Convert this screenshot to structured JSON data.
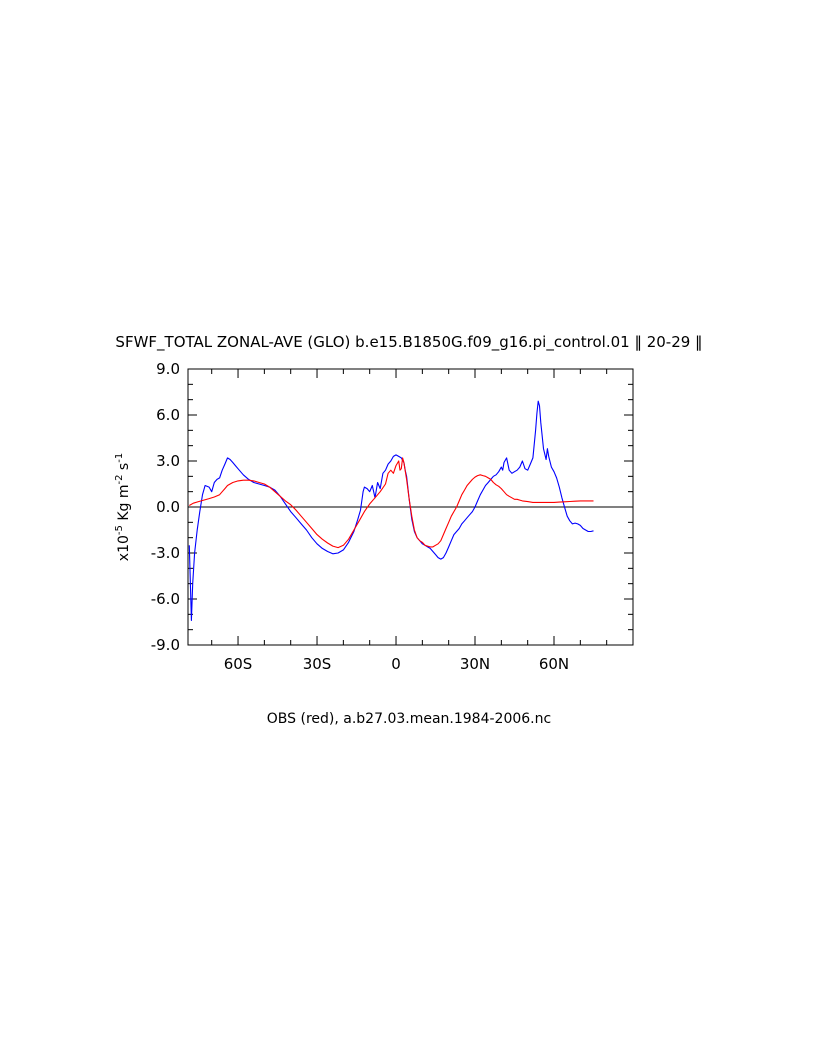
{
  "chart_data": {
    "type": "line",
    "title": "SFWF_TOTAL ZONAL-AVE (GLO) b.e15.B1850G.f09_g16.pi_control.01 ‖ 20-29 ‖",
    "xlabel": "OBS (red), a.b27.03.mean.1984-2006.nc",
    "ylabel": {
      "base": "x10",
      "exp1": "-5",
      "mid1": " Kg m",
      "exp2": "-2",
      "mid2": " s",
      "exp3": "-1"
    },
    "xlim": [
      -79,
      90
    ],
    "ylim": [
      -9,
      9
    ],
    "x_ticks": [
      {
        "value": -60,
        "label": "60S"
      },
      {
        "value": -30,
        "label": "30S"
      },
      {
        "value": 0,
        "label": "0"
      },
      {
        "value": 30,
        "label": "30N"
      },
      {
        "value": 60,
        "label": "60N"
      }
    ],
    "y_ticks": [
      {
        "value": 9,
        "label": "9.0"
      },
      {
        "value": 6,
        "label": "6.0"
      },
      {
        "value": 3,
        "label": "3.0"
      },
      {
        "value": 0,
        "label": "0.0"
      },
      {
        "value": -3,
        "label": "-3.0"
      },
      {
        "value": -6,
        "label": "-6.0"
      },
      {
        "value": -9,
        "label": "-9.0"
      }
    ],
    "zero_line": 0,
    "series": [
      {
        "color": "#0000ff",
        "points": [
          [
            -78.5,
            -2.5
          ],
          [
            -78,
            -5.5
          ],
          [
            -77.7,
            -7.4
          ],
          [
            -77.2,
            -5
          ],
          [
            -76.5,
            -3
          ],
          [
            -75.5,
            -1.5
          ],
          [
            -74.5,
            -0.3
          ],
          [
            -73.5,
            0.8
          ],
          [
            -72.5,
            1.4
          ],
          [
            -71,
            1.3
          ],
          [
            -70,
            1
          ],
          [
            -69,
            1.6
          ],
          [
            -68,
            1.8
          ],
          [
            -67,
            1.9
          ],
          [
            -66,
            2.4
          ],
          [
            -65,
            2.8
          ],
          [
            -64,
            3.2
          ],
          [
            -63,
            3.1
          ],
          [
            -62,
            2.9
          ],
          [
            -61,
            2.7
          ],
          [
            -60,
            2.5
          ],
          [
            -58,
            2.1
          ],
          [
            -56,
            1.8
          ],
          [
            -54,
            1.6
          ],
          [
            -52,
            1.5
          ],
          [
            -50,
            1.4
          ],
          [
            -48,
            1.3
          ],
          [
            -46,
            1.1
          ],
          [
            -44,
            0.7
          ],
          [
            -42,
            0.2
          ],
          [
            -40,
            -0.3
          ],
          [
            -38,
            -0.7
          ],
          [
            -36,
            -1.1
          ],
          [
            -34,
            -1.5
          ],
          [
            -32,
            -2
          ],
          [
            -30,
            -2.4
          ],
          [
            -28,
            -2.7
          ],
          [
            -26,
            -2.9
          ],
          [
            -24,
            -3.05
          ],
          [
            -22,
            -3
          ],
          [
            -20,
            -2.8
          ],
          [
            -18,
            -2.3
          ],
          [
            -16,
            -1.6
          ],
          [
            -14.5,
            -0.8
          ],
          [
            -13.5,
            -0.2
          ],
          [
            -13,
            0.4
          ],
          [
            -12.5,
            1
          ],
          [
            -12,
            1.3
          ],
          [
            -11,
            1.2
          ],
          [
            -10,
            1
          ],
          [
            -9,
            1.4
          ],
          [
            -8,
            0.6
          ],
          [
            -7,
            1.6
          ],
          [
            -6,
            1.2
          ],
          [
            -5,
            2.2
          ],
          [
            -4,
            2.4
          ],
          [
            -3,
            2.8
          ],
          [
            -2,
            3
          ],
          [
            -1,
            3.3
          ],
          [
            0,
            3.4
          ],
          [
            1,
            3.3
          ],
          [
            2,
            3.2
          ],
          [
            3,
            2.9
          ],
          [
            3.5,
            2.4
          ],
          [
            4,
            2
          ],
          [
            5,
            0.5
          ],
          [
            6,
            -0.8
          ],
          [
            7,
            -1.6
          ],
          [
            8,
            -2
          ],
          [
            9,
            -2.2
          ],
          [
            10,
            -2.4
          ],
          [
            11,
            -2.5
          ],
          [
            12,
            -2.6
          ],
          [
            13,
            -2.7
          ],
          [
            14,
            -2.9
          ],
          [
            15,
            -3.1
          ],
          [
            16,
            -3.3
          ],
          [
            17,
            -3.4
          ],
          [
            18,
            -3.3
          ],
          [
            19,
            -3
          ],
          [
            20,
            -2.6
          ],
          [
            21,
            -2.2
          ],
          [
            22,
            -1.8
          ],
          [
            23,
            -1.6
          ],
          [
            24,
            -1.4
          ],
          [
            25,
            -1.1
          ],
          [
            26,
            -0.9
          ],
          [
            27,
            -0.7
          ],
          [
            28,
            -0.5
          ],
          [
            29,
            -0.3
          ],
          [
            30,
            0
          ],
          [
            31,
            0.4
          ],
          [
            32,
            0.8
          ],
          [
            33,
            1.1
          ],
          [
            34,
            1.4
          ],
          [
            35,
            1.6
          ],
          [
            36,
            1.8
          ],
          [
            37,
            2
          ],
          [
            38,
            2.1
          ],
          [
            39,
            2.3
          ],
          [
            40,
            2.6
          ],
          [
            40.5,
            2.4
          ],
          [
            41,
            2.9
          ],
          [
            42,
            3.2
          ],
          [
            43,
            2.4
          ],
          [
            44,
            2.2
          ],
          [
            45,
            2.3
          ],
          [
            46,
            2.4
          ],
          [
            47,
            2.6
          ],
          [
            48,
            3
          ],
          [
            49,
            2.5
          ],
          [
            50,
            2.4
          ],
          [
            51,
            2.8
          ],
          [
            52,
            3.2
          ],
          [
            53,
            5
          ],
          [
            53.5,
            6.1
          ],
          [
            54,
            6.9
          ],
          [
            54.5,
            6.6
          ],
          [
            55,
            5.5
          ],
          [
            56,
            3.8
          ],
          [
            57,
            3.1
          ],
          [
            57.5,
            3.8
          ],
          [
            58,
            3.3
          ],
          [
            59,
            2.6
          ],
          [
            60,
            2.3
          ],
          [
            61,
            1.9
          ],
          [
            62,
            1.3
          ],
          [
            63,
            0.6
          ],
          [
            64,
            0
          ],
          [
            65,
            -0.6
          ],
          [
            66,
            -0.9
          ],
          [
            67,
            -1.1
          ],
          [
            68,
            -1.05
          ],
          [
            69,
            -1.1
          ],
          [
            70,
            -1.2
          ],
          [
            71,
            -1.4
          ],
          [
            72,
            -1.5
          ],
          [
            73,
            -1.6
          ],
          [
            74,
            -1.6
          ],
          [
            75,
            -1.55
          ]
        ]
      },
      {
        "color": "#ff0000",
        "points": [
          [
            -78.5,
            0.1
          ],
          [
            -77,
            0.25
          ],
          [
            -75,
            0.35
          ],
          [
            -73,
            0.45
          ],
          [
            -71,
            0.55
          ],
          [
            -69,
            0.65
          ],
          [
            -67,
            0.8
          ],
          [
            -66,
            1
          ],
          [
            -65,
            1.2
          ],
          [
            -64,
            1.4
          ],
          [
            -63,
            1.5
          ],
          [
            -62,
            1.6
          ],
          [
            -60,
            1.7
          ],
          [
            -58,
            1.75
          ],
          [
            -56,
            1.75
          ],
          [
            -54,
            1.7
          ],
          [
            -52,
            1.6
          ],
          [
            -50,
            1.5
          ],
          [
            -48,
            1.3
          ],
          [
            -46,
            1
          ],
          [
            -44,
            0.7
          ],
          [
            -42,
            0.4
          ],
          [
            -40,
            0.15
          ],
          [
            -38,
            -0.2
          ],
          [
            -36,
            -0.6
          ],
          [
            -34,
            -1
          ],
          [
            -32,
            -1.4
          ],
          [
            -30,
            -1.8
          ],
          [
            -28,
            -2.1
          ],
          [
            -26,
            -2.35
          ],
          [
            -24,
            -2.55
          ],
          [
            -22,
            -2.65
          ],
          [
            -20,
            -2.5
          ],
          [
            -18,
            -2.1
          ],
          [
            -16,
            -1.5
          ],
          [
            -14,
            -0.9
          ],
          [
            -12,
            -0.3
          ],
          [
            -10,
            0.2
          ],
          [
            -8,
            0.6
          ],
          [
            -6,
            1
          ],
          [
            -4,
            1.5
          ],
          [
            -3,
            2.2
          ],
          [
            -2,
            2.4
          ],
          [
            -1,
            2.2
          ],
          [
            0,
            2.7
          ],
          [
            1,
            3
          ],
          [
            1.5,
            2.4
          ],
          [
            2,
            2.5
          ],
          [
            2.5,
            3.2
          ],
          [
            3,
            2.9
          ],
          [
            4,
            1.8
          ],
          [
            5,
            0.5
          ],
          [
            6,
            -0.6
          ],
          [
            7,
            -1.5
          ],
          [
            8,
            -2
          ],
          [
            9,
            -2.2
          ],
          [
            10,
            -2.3
          ],
          [
            11,
            -2.5
          ],
          [
            12,
            -2.55
          ],
          [
            13,
            -2.6
          ],
          [
            14,
            -2.6
          ],
          [
            15,
            -2.5
          ],
          [
            16,
            -2.4
          ],
          [
            17,
            -2.2
          ],
          [
            18,
            -1.8
          ],
          [
            19,
            -1.4
          ],
          [
            20,
            -1
          ],
          [
            21,
            -0.6
          ],
          [
            22,
            -0.3
          ],
          [
            23,
            0
          ],
          [
            24,
            0.4
          ],
          [
            25,
            0.8
          ],
          [
            26,
            1.1
          ],
          [
            27,
            1.4
          ],
          [
            28,
            1.6
          ],
          [
            29,
            1.8
          ],
          [
            30,
            1.95
          ],
          [
            31,
            2.05
          ],
          [
            32,
            2.1
          ],
          [
            33,
            2.05
          ],
          [
            34,
            2
          ],
          [
            35,
            1.9
          ],
          [
            36,
            1.8
          ],
          [
            37,
            1.6
          ],
          [
            38,
            1.45
          ],
          [
            39,
            1.35
          ],
          [
            40,
            1.2
          ],
          [
            41,
            1
          ],
          [
            42,
            0.8
          ],
          [
            43,
            0.7
          ],
          [
            44,
            0.6
          ],
          [
            45,
            0.5
          ],
          [
            46,
            0.5
          ],
          [
            47,
            0.45
          ],
          [
            48,
            0.4
          ],
          [
            50,
            0.35
          ],
          [
            52,
            0.3
          ],
          [
            54,
            0.3
          ],
          [
            56,
            0.3
          ],
          [
            58,
            0.3
          ],
          [
            60,
            0.3
          ],
          [
            62,
            0.32
          ],
          [
            64,
            0.34
          ],
          [
            66,
            0.36
          ],
          [
            68,
            0.38
          ],
          [
            70,
            0.4
          ],
          [
            72,
            0.4
          ],
          [
            74,
            0.4
          ],
          [
            75,
            0.4
          ]
        ]
      }
    ]
  }
}
